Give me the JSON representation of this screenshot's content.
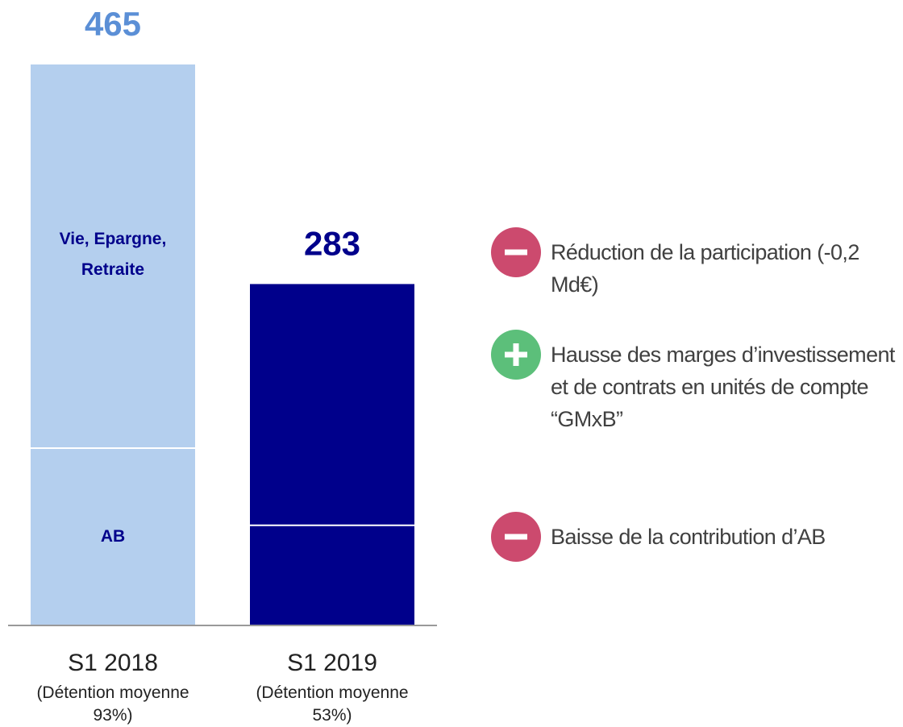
{
  "chart_data": {
    "type": "stacked_bar",
    "categories": [
      "S1 2018",
      "S1 2019"
    ],
    "category_notes": [
      [
        "(Détention moyenne",
        "93%)"
      ],
      [
        "(Détention moyenne",
        "53%)"
      ]
    ],
    "colors": [
      "#b4cfee",
      "#00008b"
    ],
    "total_colors": [
      "#5b8fd6",
      "#00008b"
    ],
    "totals": [
      465,
      283
    ],
    "series": [
      {
        "name": "AB",
        "values": [
          147,
          83
        ]
      },
      {
        "name": "Vie, Epargne, Retraite",
        "values": [
          318,
          200
        ]
      }
    ],
    "annotations": [
      {
        "sign": "minus",
        "text": "Réduction de la participation (-0,2 Md€)"
      },
      {
        "sign": "plus",
        "text": "Hausse des marges d’investissement et de contrats en unités de compte “GMxB”"
      },
      {
        "sign": "minus",
        "text": "Baisse de la contribution d’AB"
      }
    ]
  }
}
